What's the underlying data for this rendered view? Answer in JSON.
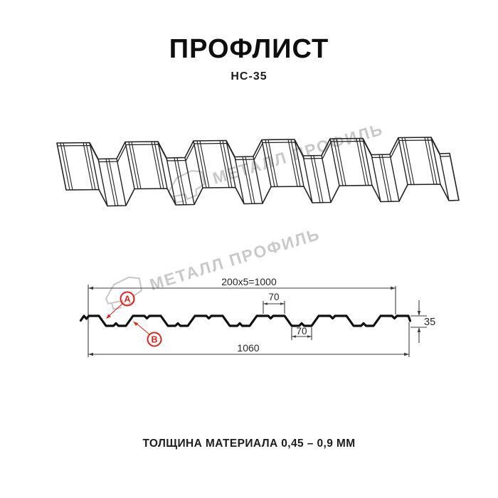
{
  "header": {
    "title": "ПРОФЛИСТ",
    "subtitle": "НС-35"
  },
  "watermark": {
    "text": "МЕТАЛЛ ПРОФИЛЬ",
    "color": "#c9c9c9"
  },
  "cross_section": {
    "dimensions": {
      "module_width": "200x5=1000",
      "rib_top_width": "70",
      "rib_bottom_width": "70",
      "profile_height": "35",
      "total_width": "1060"
    },
    "callouts": {
      "a": "А",
      "b": "В"
    },
    "colors": {
      "profile_line": "#101010",
      "dimension_line": "#3c3c3c",
      "callout_red": "#e2231a"
    }
  },
  "footer": {
    "thickness_note": "ТОЛЩИНА МАТЕРИАЛА 0,45 – 0,9 ММ"
  }
}
